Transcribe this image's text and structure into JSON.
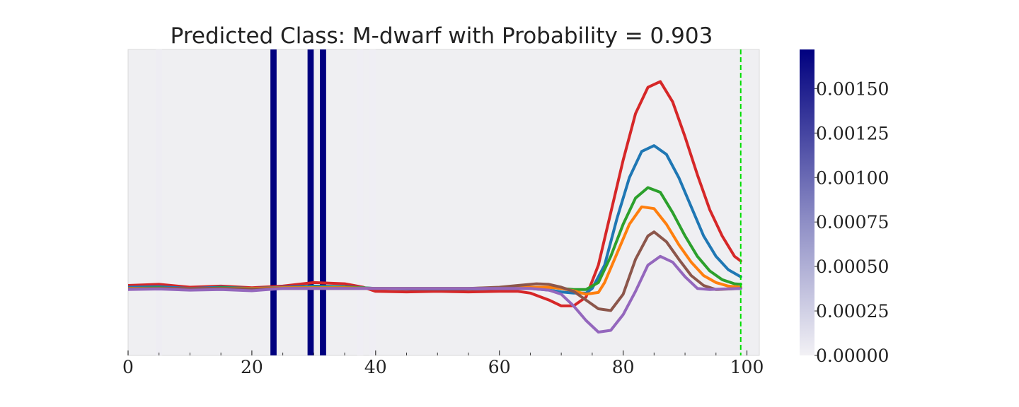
{
  "chart_data": {
    "type": "line",
    "title": "Predicted Class: M-dwarf with Probability = 0.903",
    "xlabel": "",
    "ylabel": "",
    "xlim": [
      0,
      102
    ],
    "ylim": [
      -1.15,
      4.1
    ],
    "x_ticks": [
      "0",
      "20",
      "40",
      "60",
      "80",
      "100"
    ],
    "x_tick_values": [
      0,
      20,
      40,
      60,
      80,
      100
    ],
    "grid": false,
    "legend": "none",
    "background": "#efeff2",
    "vertical_marker": {
      "x": 99,
      "color": "#00dd00",
      "style": "dashed"
    },
    "attribution_bands": [
      {
        "x": 5,
        "value": 3e-05
      },
      {
        "x": 23.5,
        "value": 0.00172
      },
      {
        "x": 29.5,
        "value": 0.00172
      },
      {
        "x": 31.5,
        "value": 0.00172
      },
      {
        "x": 37.5,
        "value": 2e-05
      },
      {
        "x": 39.5,
        "value": 2e-05
      }
    ],
    "colorbar": {
      "min": 0,
      "max": 0.00172,
      "ticks": [
        "0.00000",
        "0.00025",
        "0.00050",
        "0.00075",
        "0.00100",
        "0.00125",
        "0.00150"
      ],
      "tick_values": [
        0,
        0.00025,
        0.0005,
        0.00075,
        0.001,
        0.00125,
        0.0015
      ],
      "colors": [
        "#f2f1f5",
        "#00007f"
      ]
    },
    "series": [
      {
        "color": "#d62728",
        "points": [
          [
            0,
            0.05
          ],
          [
            5,
            0.07
          ],
          [
            10,
            0.02
          ],
          [
            15,
            0.04
          ],
          [
            20,
            0.01
          ],
          [
            25,
            0.04
          ],
          [
            30,
            0.1
          ],
          [
            35,
            0.08
          ],
          [
            38,
            0.02
          ],
          [
            40,
            -0.05
          ],
          [
            45,
            -0.06
          ],
          [
            50,
            -0.05
          ],
          [
            55,
            -0.06
          ],
          [
            60,
            -0.05
          ],
          [
            63,
            -0.05
          ],
          [
            65,
            -0.08
          ],
          [
            68,
            -0.2
          ],
          [
            70,
            -0.3
          ],
          [
            72,
            -0.3
          ],
          [
            74,
            -0.15
          ],
          [
            76,
            0.4
          ],
          [
            78,
            1.3
          ],
          [
            80,
            2.2
          ],
          [
            82,
            3.0
          ],
          [
            84,
            3.45
          ],
          [
            86,
            3.55
          ],
          [
            88,
            3.2
          ],
          [
            90,
            2.6
          ],
          [
            92,
            1.95
          ],
          [
            94,
            1.35
          ],
          [
            96,
            0.9
          ],
          [
            98,
            0.55
          ],
          [
            99,
            0.47
          ]
        ]
      },
      {
        "color": "#1f77b4",
        "points": [
          [
            0,
            0.02
          ],
          [
            5,
            0.03
          ],
          [
            10,
            0.0
          ],
          [
            15,
            0.02
          ],
          [
            20,
            0.0
          ],
          [
            25,
            0.02
          ],
          [
            30,
            0.04
          ],
          [
            35,
            0.03
          ],
          [
            40,
            0.0
          ],
          [
            45,
            -0.01
          ],
          [
            50,
            -0.01
          ],
          [
            55,
            -0.01
          ],
          [
            60,
            0.0
          ],
          [
            65,
            0.0
          ],
          [
            68,
            -0.03
          ],
          [
            70,
            -0.06
          ],
          [
            72,
            -0.08
          ],
          [
            74,
            -0.08
          ],
          [
            75,
            0.0
          ],
          [
            77,
            0.4
          ],
          [
            79,
            1.2
          ],
          [
            81,
            1.9
          ],
          [
            83,
            2.35
          ],
          [
            85,
            2.45
          ],
          [
            87,
            2.3
          ],
          [
            89,
            1.9
          ],
          [
            91,
            1.4
          ],
          [
            93,
            0.9
          ],
          [
            95,
            0.55
          ],
          [
            97,
            0.32
          ],
          [
            99,
            0.2
          ]
        ]
      },
      {
        "color": "#2ca02c",
        "points": [
          [
            0,
            0.0
          ],
          [
            5,
            0.01
          ],
          [
            10,
            -0.02
          ],
          [
            15,
            0.01
          ],
          [
            20,
            0.0
          ],
          [
            25,
            0.01
          ],
          [
            30,
            0.02
          ],
          [
            35,
            0.02
          ],
          [
            40,
            0.0
          ],
          [
            45,
            0.0
          ],
          [
            50,
            0.0
          ],
          [
            55,
            0.0
          ],
          [
            60,
            0.01
          ],
          [
            65,
            0.02
          ],
          [
            68,
            0.02
          ],
          [
            70,
            0.0
          ],
          [
            72,
            -0.02
          ],
          [
            74,
            -0.02
          ],
          [
            76,
            0.1
          ],
          [
            78,
            0.55
          ],
          [
            80,
            1.1
          ],
          [
            82,
            1.55
          ],
          [
            84,
            1.73
          ],
          [
            86,
            1.65
          ],
          [
            88,
            1.3
          ],
          [
            90,
            0.9
          ],
          [
            92,
            0.55
          ],
          [
            94,
            0.3
          ],
          [
            96,
            0.15
          ],
          [
            98,
            0.08
          ],
          [
            99,
            0.07
          ]
        ]
      },
      {
        "color": "#ff7f0e",
        "points": [
          [
            0,
            0.0
          ],
          [
            5,
            0.0
          ],
          [
            10,
            0.0
          ],
          [
            15,
            0.0
          ],
          [
            20,
            0.0
          ],
          [
            25,
            0.01
          ],
          [
            30,
            0.01
          ],
          [
            35,
            0.01
          ],
          [
            40,
            0.0
          ],
          [
            45,
            0.0
          ],
          [
            50,
            0.0
          ],
          [
            55,
            0.0
          ],
          [
            60,
            0.01
          ],
          [
            65,
            0.02
          ],
          [
            68,
            0.02
          ],
          [
            70,
            0.0
          ],
          [
            72,
            -0.04
          ],
          [
            74,
            -0.1
          ],
          [
            76,
            -0.07
          ],
          [
            77,
            0.1
          ],
          [
            79,
            0.6
          ],
          [
            81,
            1.1
          ],
          [
            83,
            1.4
          ],
          [
            85,
            1.37
          ],
          [
            87,
            1.1
          ],
          [
            89,
            0.75
          ],
          [
            91,
            0.45
          ],
          [
            93,
            0.22
          ],
          [
            95,
            0.1
          ],
          [
            97,
            0.04
          ],
          [
            99,
            0.02
          ]
        ]
      },
      {
        "color": "#8c564b",
        "points": [
          [
            0,
            -0.01
          ],
          [
            5,
            0.0
          ],
          [
            10,
            0.0
          ],
          [
            15,
            0.0
          ],
          [
            20,
            -0.01
          ],
          [
            25,
            0.0
          ],
          [
            30,
            0.0
          ],
          [
            35,
            0.0
          ],
          [
            40,
            0.0
          ],
          [
            45,
            0.0
          ],
          [
            50,
            0.0
          ],
          [
            55,
            0.0
          ],
          [
            60,
            0.02
          ],
          [
            63,
            0.05
          ],
          [
            66,
            0.08
          ],
          [
            68,
            0.07
          ],
          [
            70,
            0.02
          ],
          [
            72,
            -0.05
          ],
          [
            74,
            -0.2
          ],
          [
            76,
            -0.35
          ],
          [
            78,
            -0.38
          ],
          [
            80,
            -0.1
          ],
          [
            82,
            0.5
          ],
          [
            84,
            0.9
          ],
          [
            85,
            0.97
          ],
          [
            87,
            0.8
          ],
          [
            89,
            0.5
          ],
          [
            91,
            0.22
          ],
          [
            93,
            0.05
          ],
          [
            95,
            -0.02
          ],
          [
            97,
            -0.01
          ],
          [
            99,
            0.0
          ]
        ]
      },
      {
        "color": "#9467bd",
        "points": [
          [
            0,
            -0.02
          ],
          [
            5,
            -0.01
          ],
          [
            10,
            -0.03
          ],
          [
            15,
            -0.02
          ],
          [
            20,
            -0.04
          ],
          [
            25,
            0.0
          ],
          [
            30,
            0.0
          ],
          [
            35,
            0.0
          ],
          [
            40,
            0.0
          ],
          [
            45,
            0.0
          ],
          [
            50,
            0.0
          ],
          [
            55,
            0.0
          ],
          [
            60,
            0.0
          ],
          [
            65,
            0.0
          ],
          [
            68,
            -0.03
          ],
          [
            70,
            -0.1
          ],
          [
            72,
            -0.3
          ],
          [
            74,
            -0.55
          ],
          [
            76,
            -0.75
          ],
          [
            78,
            -0.72
          ],
          [
            80,
            -0.45
          ],
          [
            82,
            -0.05
          ],
          [
            84,
            0.4
          ],
          [
            86,
            0.55
          ],
          [
            88,
            0.45
          ],
          [
            90,
            0.2
          ],
          [
            92,
            0.0
          ],
          [
            94,
            -0.02
          ],
          [
            96,
            -0.01
          ],
          [
            99,
            0.0
          ]
        ]
      }
    ]
  }
}
